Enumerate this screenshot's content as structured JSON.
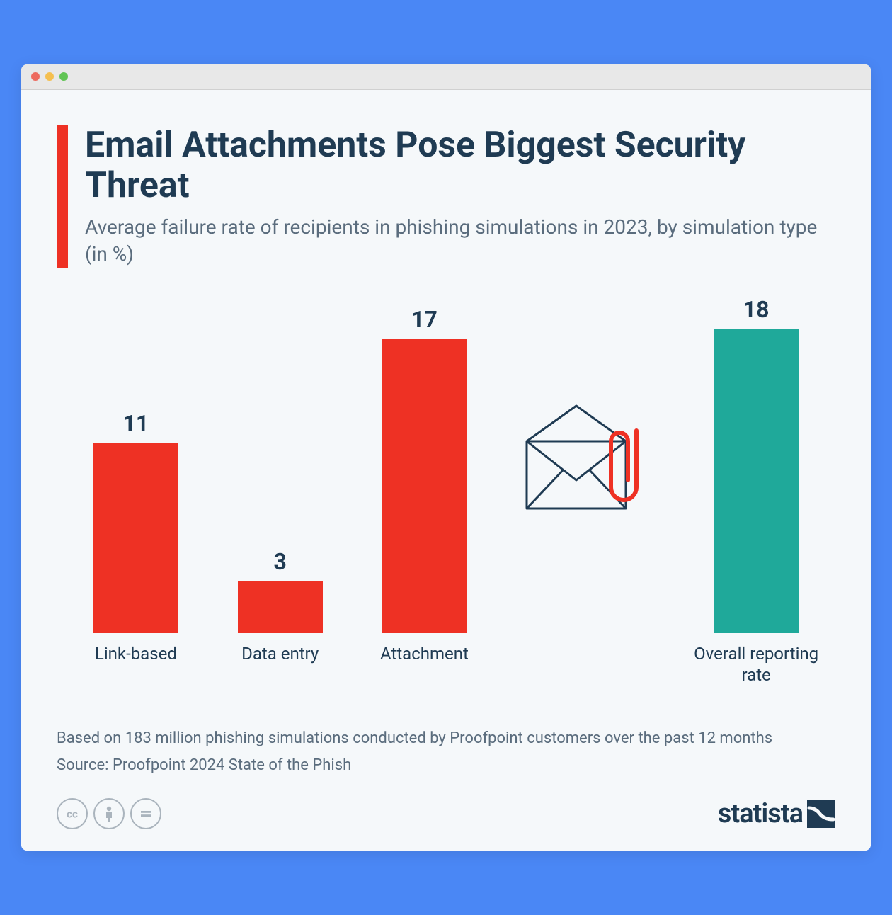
{
  "frame": {
    "outer_background": "#4a87f5",
    "browser_bar_background": "#e8e8e8",
    "content_background": "#f5f8fa",
    "dots": [
      "#ed6a5e",
      "#f5bf4f",
      "#61c454"
    ]
  },
  "header": {
    "accent_color": "#ee3124",
    "title": "Email Attachments Pose Biggest Security Threat",
    "title_color": "#1f3b53",
    "subtitle": "Average failure rate of recipients in phishing simulations in 2023, by simulation type (in %)",
    "subtitle_color": "#5a6c7d"
  },
  "chart": {
    "type": "bar",
    "max_value": 18,
    "value_font_size": 32,
    "label_font_size": 24,
    "text_color": "#1f3b53",
    "bars": [
      {
        "label": "Link-based",
        "value": 11,
        "color": "#ee3124"
      },
      {
        "label": "Data entry",
        "value": 3,
        "color": "#ee3124"
      },
      {
        "label": "Attachment",
        "value": 17,
        "color": "#ee3124"
      }
    ],
    "secondary_bar": {
      "label": "Overall reporting rate",
      "value": 18,
      "color": "#1fa99a"
    },
    "icon": {
      "envelope_stroke": "#1f3b53",
      "clip_color": "#ee3124"
    }
  },
  "footer": {
    "note_line1": "Based on 183 million phishing simulations conducted by Proofpoint customers over the past 12 months",
    "note_line2": "Source: Proofpoint 2024 State of the Phish",
    "cc_color": "#aab4bd",
    "brand_name": "statista",
    "brand_color": "#1f3b53"
  }
}
